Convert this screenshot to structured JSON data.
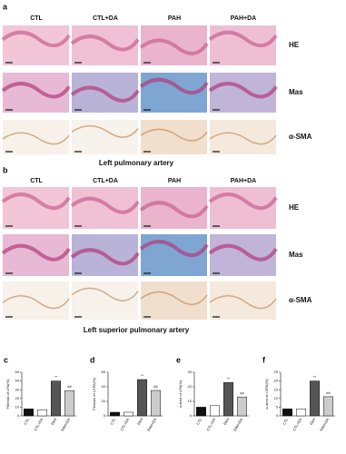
{
  "panels": [
    {
      "label": "a",
      "columns": [
        "CTL",
        "CTL+DA",
        "PAH",
        "PAH+DA"
      ],
      "rows": [
        "HE",
        "Mas",
        "α-SMA"
      ],
      "caption": "Left pulmonary artery"
    },
    {
      "label": "b",
      "columns": [
        "CTL",
        "CTL+DA",
        "PAH",
        "PAH+DA"
      ],
      "rows": [
        "HE",
        "Mas",
        "α-SMA"
      ],
      "caption": "Left superior pulmonary artery"
    }
  ],
  "chart_data": [
    {
      "type": "bar",
      "panel": "c",
      "ylabel": "Fibrosis of LPA(%)",
      "categories": [
        "CTL",
        "CTL+DA",
        "PAH",
        "PAH+DA"
      ],
      "values": [
        8,
        7,
        40,
        29
      ],
      "colors": [
        "#111111",
        "#ffffff",
        "#555555",
        "#cccccc"
      ],
      "markers": [
        null,
        null,
        "**",
        "##"
      ],
      "ylim": [
        0,
        50
      ],
      "yticks": [
        0,
        10,
        20,
        30,
        40,
        50
      ]
    },
    {
      "type": "bar",
      "panel": "d",
      "ylabel": "Fibrosis of LSPA(%)",
      "categories": [
        "CTL",
        "CTL+DA",
        "PAH",
        "PAH+DA"
      ],
      "values": [
        5,
        5,
        50,
        35
      ],
      "colors": [
        "#111111",
        "#ffffff",
        "#555555",
        "#cccccc"
      ],
      "markers": [
        null,
        null,
        "**",
        "##"
      ],
      "ylim": [
        0,
        60
      ],
      "yticks": [
        0,
        20,
        40,
        60
      ]
    },
    {
      "type": "bar",
      "panel": "e",
      "ylabel": "α-area of LPA(%)",
      "categories": [
        "CTL",
        "CTL+DA",
        "PAH",
        "PAH+DA"
      ],
      "values": [
        6,
        7,
        23,
        13
      ],
      "colors": [
        "#111111",
        "#ffffff",
        "#555555",
        "#cccccc"
      ],
      "markers": [
        null,
        null,
        "**",
        "##"
      ],
      "ylim": [
        0,
        30
      ],
      "yticks": [
        0,
        10,
        20,
        30
      ]
    },
    {
      "type": "bar",
      "panel": "f",
      "ylabel": "α-area of LSPA(%)",
      "categories": [
        "CTL",
        "CTL+DA",
        "PAH",
        "PAH+DA"
      ],
      "values": [
        4,
        4,
        20,
        11
      ],
      "colors": [
        "#111111",
        "#ffffff",
        "#555555",
        "#cccccc"
      ],
      "markers": [
        null,
        null,
        "**",
        "##"
      ],
      "ylim": [
        0,
        25
      ],
      "yticks": [
        0,
        5,
        10,
        15,
        20,
        25
      ]
    }
  ]
}
